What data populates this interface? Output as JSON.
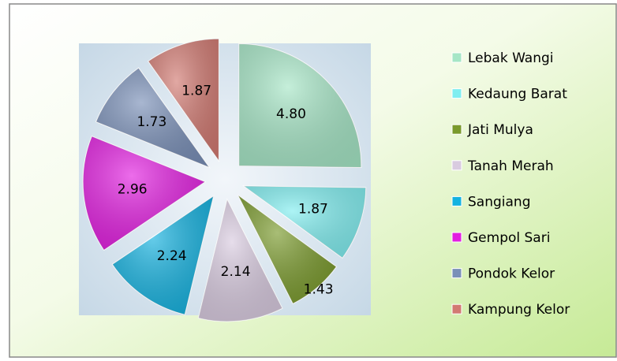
{
  "chart_data": {
    "type": "pie",
    "categories": [
      "Lebak Wangi",
      "Kedaung Barat",
      "Jati Mulya",
      "Tanah Merah",
      "Sangiang",
      "Gempol Sari",
      "Pondok Kelor",
      "Kampung Kelor"
    ],
    "values": [
      4.8,
      1.87,
      1.43,
      2.14,
      2.24,
      2.96,
      1.73,
      1.87
    ],
    "value_labels": [
      "4.80",
      "1.87",
      "1.43",
      "2.14",
      "2.24",
      "2.96",
      "1.73",
      "1.87"
    ],
    "colors": [
      "#a6e6c6",
      "#80eef0",
      "#7a9a2c",
      "#d9cbe0",
      "#14b2e0",
      "#e21ee0",
      "#7a90b8",
      "#d27a72"
    ],
    "legend": "right"
  }
}
